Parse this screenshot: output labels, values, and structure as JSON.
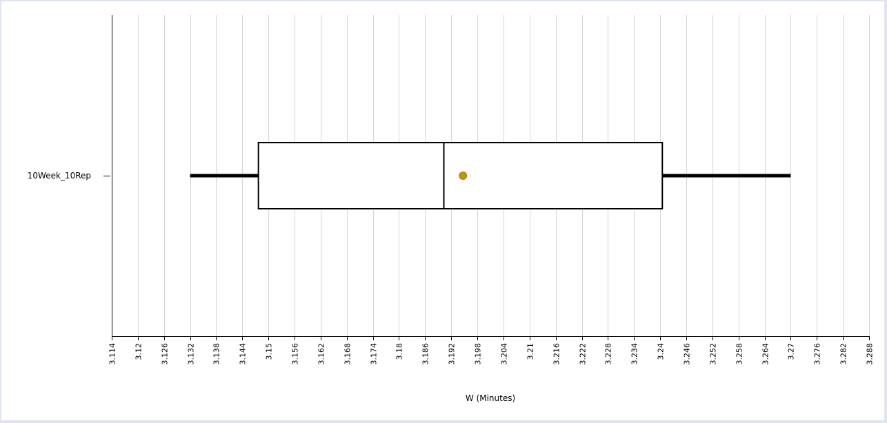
{
  "chart_data": {
    "type": "boxplot",
    "orientation": "horizontal",
    "xlabel": "W (Minutes)",
    "xlim": [
      3.114,
      3.288
    ],
    "x_ticks": [
      "3.114",
      "3.12",
      "3.126",
      "3.132",
      "3.138",
      "3.144",
      "3.15",
      "3.156",
      "3.162",
      "3.168",
      "3.174",
      "3.18",
      "3.186",
      "3.192",
      "3.198",
      "3.204",
      "3.21",
      "3.216",
      "3.222",
      "3.228",
      "3.234",
      "3.24",
      "3.246",
      "3.252",
      "3.258",
      "3.264",
      "3.27",
      "3.276",
      "3.282",
      "3.288"
    ],
    "grid": true,
    "series": [
      {
        "name": "10Week_10Rep",
        "min": 3.132,
        "q1": 3.1477,
        "median": 3.1903,
        "mean": 3.1947,
        "q3": 3.2405,
        "max": 3.27
      }
    ],
    "colors": {
      "mean_marker": "#c8900a",
      "box_stroke": "#000000",
      "grid": "#d4d4d4",
      "background": "#ffffff",
      "frame": "#dfe5f0"
    }
  }
}
